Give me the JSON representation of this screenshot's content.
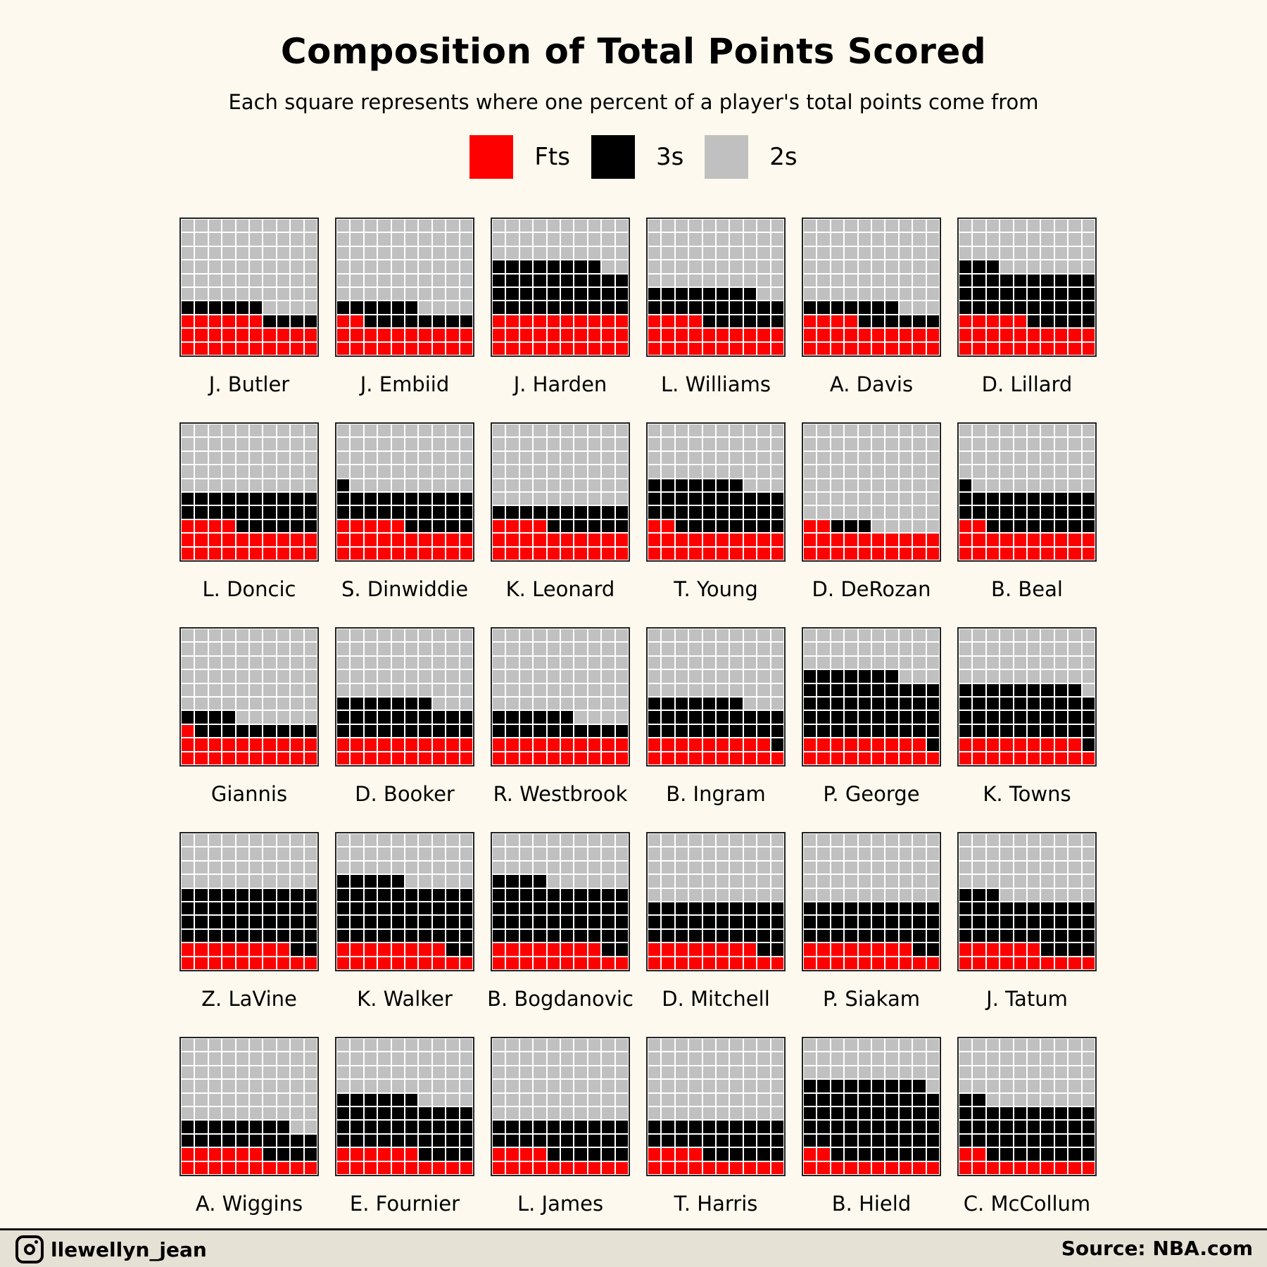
{
  "colors": {
    "fts": "#ff0000",
    "threes": "#000000",
    "twos": "#c0c0c0"
  },
  "footer": {
    "handle": "llewellyn_jean",
    "source": "Source: NBA.com",
    "icon": "instagram-icon"
  },
  "chart_data": {
    "type": "waffle",
    "title": "Composition of Total Points Scored",
    "subtitle": "Each square represents where one percent of a player's total points come from",
    "unit": "percent of total points",
    "grid_size": [
      10,
      10
    ],
    "legend": [
      {
        "key": "fts",
        "label": "Fts"
      },
      {
        "key": "threes",
        "label": "3s"
      },
      {
        "key": "twos",
        "label": "2s"
      }
    ],
    "players": [
      {
        "name": "J. Butler",
        "fts": 26,
        "threes": 10,
        "twos": 64
      },
      {
        "name": "J. Embiid",
        "fts": 22,
        "threes": 14,
        "twos": 64
      },
      {
        "name": "J. Harden",
        "fts": 30,
        "threes": 38,
        "twos": 32
      },
      {
        "name": "L. Williams",
        "fts": 24,
        "threes": 24,
        "twos": 52
      },
      {
        "name": "A. Davis",
        "fts": 24,
        "threes": 13,
        "twos": 63
      },
      {
        "name": "D. Lillard",
        "fts": 25,
        "threes": 38,
        "twos": 37
      },
      {
        "name": "L. Doncic",
        "fts": 24,
        "threes": 26,
        "twos": 50
      },
      {
        "name": "S. Dinwiddie",
        "fts": 25,
        "threes": 26,
        "twos": 49
      },
      {
        "name": "K. Leonard",
        "fts": 24,
        "threes": 16,
        "twos": 60
      },
      {
        "name": "T. Young",
        "fts": 22,
        "threes": 35,
        "twos": 43
      },
      {
        "name": "D. DeRozan",
        "fts": 22,
        "threes": 3,
        "twos": 75
      },
      {
        "name": "B. Beal",
        "fts": 22,
        "threes": 29,
        "twos": 49
      },
      {
        "name": "Giannis",
        "fts": 21,
        "threes": 13,
        "twos": 66
      },
      {
        "name": "D. Booker",
        "fts": 20,
        "threes": 27,
        "twos": 53
      },
      {
        "name": "R. Westbrook",
        "fts": 20,
        "threes": 16,
        "twos": 64
      },
      {
        "name": "B. Ingram",
        "fts": 19,
        "threes": 28,
        "twos": 53
      },
      {
        "name": "P. George",
        "fts": 19,
        "threes": 48,
        "twos": 33
      },
      {
        "name": "K. Towns",
        "fts": 19,
        "threes": 40,
        "twos": 41
      },
      {
        "name": "Z. LaVine",
        "fts": 18,
        "threes": 42,
        "twos": 40
      },
      {
        "name": "K. Walker",
        "fts": 18,
        "threes": 47,
        "twos": 35
      },
      {
        "name": "B. Bogdanovic",
        "fts": 18,
        "threes": 46,
        "twos": 36
      },
      {
        "name": "D. Mitchell",
        "fts": 18,
        "threes": 32,
        "twos": 50
      },
      {
        "name": "P. Siakam",
        "fts": 18,
        "threes": 32,
        "twos": 50
      },
      {
        "name": "J. Tatum",
        "fts": 16,
        "threes": 37,
        "twos": 47
      },
      {
        "name": "A. Wiggins",
        "fts": 16,
        "threes": 22,
        "twos": 62
      },
      {
        "name": "E. Fournier",
        "fts": 16,
        "threes": 40,
        "twos": 44
      },
      {
        "name": "L. James",
        "fts": 14,
        "threes": 26,
        "twos": 60
      },
      {
        "name": "T. Harris",
        "fts": 14,
        "threes": 26,
        "twos": 60
      },
      {
        "name": "B. Hield",
        "fts": 12,
        "threes": 57,
        "twos": 31
      },
      {
        "name": "C. McCollum",
        "fts": 12,
        "threes": 40,
        "twos": 48
      }
    ]
  }
}
